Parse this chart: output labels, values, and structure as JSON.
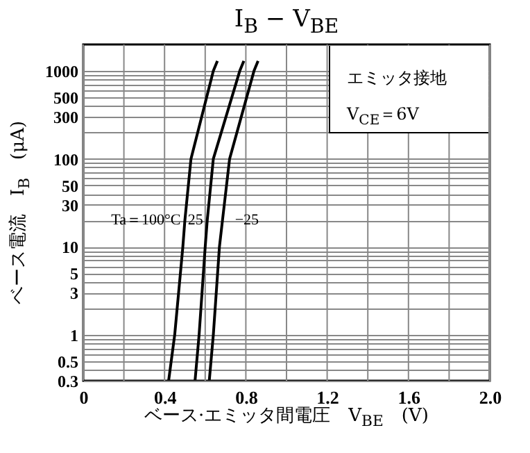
{
  "chart_data": {
    "type": "line",
    "title": "I$_{B}$ − V$_{BE}$",
    "xlabel": "ベース·エミッタ間電圧　V$_{BE}$　(V)",
    "ylabel": "ベース電流　I$_{B}$　(μA)",
    "series": [
      {
        "name": "Ta＝100°C",
        "color": "#000000",
        "x": [
          0.42,
          0.45,
          0.49,
          0.5,
          0.53,
          0.64,
          0.66
        ],
        "values": [
          0.3,
          1,
          10,
          20,
          100,
          1000,
          1300
        ]
      },
      {
        "name": "25",
        "color": "#000000",
        "x": [
          0.55,
          0.57,
          0.6,
          0.61,
          0.64,
          0.77,
          0.79
        ],
        "values": [
          0.3,
          1,
          10,
          20,
          100,
          1000,
          1300
        ]
      },
      {
        "name": "−25",
        "color": "#000000",
        "x": [
          0.62,
          0.64,
          0.67,
          0.685,
          0.72,
          0.84,
          0.86
        ],
        "values": [
          0.3,
          1,
          10,
          20,
          100,
          1000,
          1300
        ]
      }
    ],
    "xlim": [
      0,
      2
    ],
    "ylim": [
      0.3,
      2000
    ],
    "xticks": [
      0,
      {
        "value": 0.2,
        "label": null
      },
      0.4,
      {
        "value": 0.6,
        "label": null
      },
      0.8,
      {
        "value": 1,
        "label": null
      },
      1.2,
      {
        "value": 1.4,
        "label": null
      },
      1.6,
      {
        "value": 1.8,
        "label": null
      },
      {
        "value": 2,
        "label": "2.0"
      }
    ],
    "yticks": [
      0.3,
      {
        "value": 0.4,
        "label": null
      },
      0.5,
      {
        "value": 0.6,
        "label": null
      },
      {
        "value": 0.7,
        "label": null
      },
      {
        "value": 0.8,
        "label": null
      },
      {
        "value": 0.9,
        "label": null
      },
      1,
      {
        "value": 2,
        "label": null
      },
      3,
      {
        "value": 4,
        "label": null
      },
      5,
      {
        "value": 6,
        "label": null
      },
      {
        "value": 7,
        "label": null
      },
      {
        "value": 8,
        "label": null
      },
      {
        "value": 9,
        "label": null
      },
      10,
      {
        "value": 20,
        "label": null
      },
      30,
      {
        "value": 40,
        "label": null
      },
      50,
      {
        "value": 60,
        "label": null
      },
      {
        "value": 70,
        "label": null
      },
      {
        "value": 80,
        "label": null
      },
      {
        "value": 90,
        "label": null
      },
      100,
      {
        "value": 200,
        "label": null
      },
      300,
      {
        "value": 400,
        "label": null
      },
      500,
      {
        "value": 600,
        "label": null
      },
      {
        "value": 700,
        "label": null
      },
      {
        "value": 800,
        "label": null
      },
      {
        "value": 900,
        "label": null
      },
      1000
    ],
    "log": "y",
    "grid": true,
    "legend": false,
    "marker": "none",
    "line_style": "solid",
    "annotations": [
      "エミッタ接地",
      "V$_{CE}$＝6V"
    ]
  }
}
